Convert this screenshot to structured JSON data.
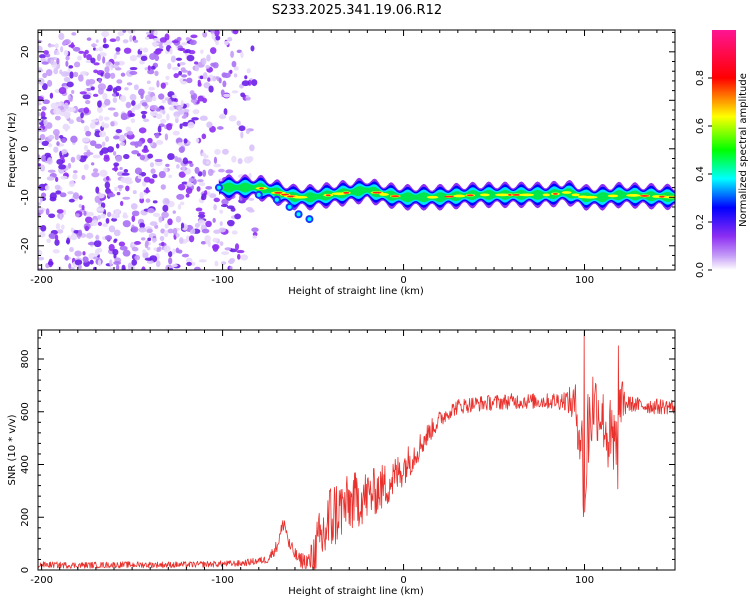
{
  "title": "S233.2025.341.19.06.R12",
  "chart_data": [
    {
      "type": "heatmap",
      "title": "",
      "xlabel": "Height of straight line (km)",
      "ylabel": "Frequency (Hz)",
      "xlim": [
        -202,
        150
      ],
      "ylim": [
        -25,
        24.5
      ],
      "xticks": [
        -200,
        -100,
        0,
        100
      ],
      "xtick_labels": [
        "-200",
        "-100",
        "0",
        "100"
      ],
      "yticks": [
        -20,
        -10,
        0,
        10,
        20
      ],
      "ytick_labels": [
        "-20",
        "-10",
        "0",
        "10",
        "20"
      ],
      "noise_region_x": [
        -202,
        -82
      ],
      "ridge": {
        "x": [
          -102,
          -90,
          -80,
          -70,
          -60,
          -50,
          -40,
          -30,
          -20,
          -10,
          0,
          10,
          20,
          40,
          60,
          80,
          90,
          100,
          110,
          120,
          150
        ],
        "freq": [
          -8,
          -8,
          -8,
          -9,
          -10,
          -10,
          -9.5,
          -9,
          -8.5,
          -9.5,
          -10,
          -10,
          -10,
          -9.5,
          -9.5,
          -9.5,
          -9,
          -10,
          -10,
          -9.5,
          -10
        ]
      },
      "colorbar": {
        "label": "Normalized spectral amplitude",
        "range": [
          0,
          1
        ],
        "ticks": [
          0.0,
          0.2,
          0.4,
          0.6,
          0.8
        ],
        "tick_labels": [
          "0.0",
          "0.2",
          "0.4",
          "0.6",
          "0.8"
        ],
        "colors": [
          "#ffffff",
          "#8d2ef3",
          "#0000ff",
          "#00ffff",
          "#00ff00",
          "#ffff00",
          "#ff0000",
          "#ff1493"
        ]
      }
    },
    {
      "type": "line",
      "title": "",
      "xlabel": "Height of straight line (km)",
      "ylabel": "SNR (10 * v/v)",
      "xlim": [
        -202,
        150
      ],
      "ylim": [
        0,
        910
      ],
      "xticks": [
        -200,
        -100,
        0,
        100
      ],
      "xtick_labels": [
        "-200",
        "-100",
        "0",
        "100"
      ],
      "yticks": [
        0,
        200,
        400,
        600,
        800
      ],
      "ytick_labels": [
        "0",
        "200",
        "400",
        "600",
        "800"
      ],
      "color": "#e8302c",
      "x": [
        -202,
        -180,
        -150,
        -120,
        -90,
        -75,
        -70,
        -66,
        -63,
        -58,
        -52,
        -48,
        -45,
        -40,
        -35,
        -30,
        -25,
        -20,
        -15,
        -10,
        -5,
        0,
        5,
        10,
        15,
        20,
        25,
        30,
        40,
        50,
        60,
        70,
        80,
        90,
        95,
        98,
        100,
        102,
        105,
        110,
        115,
        118,
        120,
        125,
        130,
        140,
        150
      ],
      "y": [
        20,
        18,
        20,
        20,
        25,
        40,
        90,
        185,
        90,
        40,
        30,
        80,
        120,
        200,
        230,
        250,
        270,
        280,
        300,
        320,
        350,
        390,
        430,
        480,
        530,
        570,
        600,
        620,
        630,
        635,
        640,
        640,
        640,
        645,
        620,
        500,
        300,
        540,
        640,
        580,
        460,
        450,
        640,
        630,
        625,
        620,
        620
      ],
      "noise": [
        12,
        12,
        12,
        12,
        12,
        15,
        25,
        30,
        30,
        25,
        45,
        110,
        140,
        150,
        120,
        110,
        110,
        100,
        90,
        90,
        80,
        70,
        60,
        50,
        40,
        35,
        30,
        30,
        30,
        30,
        30,
        30,
        30,
        40,
        90,
        150,
        220,
        200,
        150,
        110,
        190,
        230,
        90,
        30,
        30,
        30,
        30
      ],
      "spikes": [
        {
          "x": 99.8,
          "y": 905
        },
        {
          "x": 100.6,
          "y": 290
        },
        {
          "x": 117.5,
          "y": 400
        },
        {
          "x": 118.6,
          "y": 850
        }
      ]
    }
  ]
}
